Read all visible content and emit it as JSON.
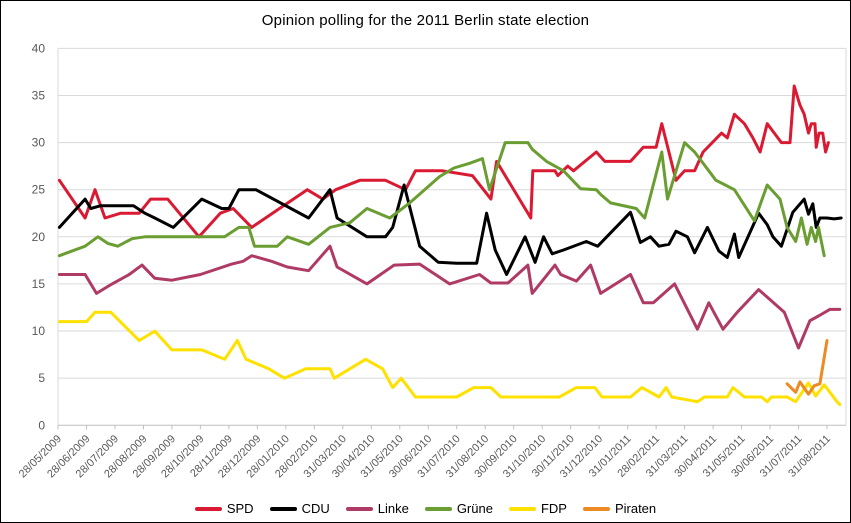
{
  "title": "Opinion polling for the 2011 Berlin state election",
  "chart_data": {
    "type": "line",
    "title": "Opinion polling for the 2011 Berlin state election",
    "xlabel": "",
    "ylabel": "",
    "ylim": [
      0,
      40
    ],
    "y_ticks": [
      0,
      5,
      10,
      15,
      20,
      25,
      30,
      35,
      40
    ],
    "grid": "horizontal",
    "legend_position": "bottom",
    "grid_color": "#dadada",
    "axis_color": "#bfbfbf",
    "tick_label_color": "#595959",
    "x_tick_labels": [
      "28/05/2009",
      "28/06/2009",
      "28/07/2009",
      "28/08/2009",
      "28/09/2009",
      "28/10/2009",
      "28/11/2009",
      "28/12/2009",
      "28/01/2010",
      "28/02/2010",
      "31/03/2010",
      "30/04/2010",
      "31/05/2010",
      "30/06/2010",
      "31/07/2010",
      "31/08/2010",
      "30/09/2010",
      "31/10/2010",
      "30/11/2010",
      "31/12/2010",
      "31/01/2011",
      "28/02/2011",
      "31/03/2011",
      "30/04/2011",
      "31/05/2011",
      "30/06/2011",
      "31/07/2011",
      "31/08/2011"
    ],
    "x_unit": "months since 28/05/2009 (tick index 0-27)",
    "series": [
      {
        "name": "SPD",
        "color": "#da1a32",
        "points": [
          [
            0.05,
            26
          ],
          [
            0.95,
            22
          ],
          [
            1.3,
            25
          ],
          [
            1.65,
            22
          ],
          [
            2.2,
            22.5
          ],
          [
            2.85,
            22.5
          ],
          [
            3.25,
            24
          ],
          [
            3.85,
            24
          ],
          [
            4.95,
            20
          ],
          [
            5.7,
            22.5
          ],
          [
            6.15,
            23
          ],
          [
            6.8,
            21
          ],
          [
            8.75,
            25
          ],
          [
            9.3,
            24
          ],
          [
            9.75,
            25
          ],
          [
            10.6,
            26
          ],
          [
            11.5,
            26
          ],
          [
            12.2,
            25
          ],
          [
            12.55,
            27
          ],
          [
            13.5,
            27
          ],
          [
            14.55,
            26.5
          ],
          [
            15.2,
            24
          ],
          [
            15.4,
            28
          ],
          [
            16.6,
            22
          ],
          [
            16.67,
            27
          ],
          [
            17.45,
            27
          ],
          [
            17.55,
            26.5
          ],
          [
            17.9,
            27.5
          ],
          [
            18.1,
            27
          ],
          [
            18.9,
            29
          ],
          [
            19.2,
            28
          ],
          [
            20.1,
            28
          ],
          [
            20.55,
            29.5
          ],
          [
            21.0,
            29.5
          ],
          [
            21.2,
            32
          ],
          [
            21.7,
            26
          ],
          [
            22.0,
            27
          ],
          [
            22.35,
            27
          ],
          [
            22.65,
            29
          ],
          [
            23.3,
            31
          ],
          [
            23.5,
            30.5
          ],
          [
            23.75,
            33
          ],
          [
            24.1,
            32
          ],
          [
            24.4,
            30.5
          ],
          [
            24.65,
            29
          ],
          [
            24.9,
            32
          ],
          [
            25.15,
            31
          ],
          [
            25.4,
            30
          ],
          [
            25.7,
            30
          ],
          [
            25.85,
            36
          ],
          [
            26.05,
            34
          ],
          [
            26.2,
            33
          ],
          [
            26.35,
            31
          ],
          [
            26.45,
            32
          ],
          [
            26.58,
            32
          ],
          [
            26.62,
            29.5
          ],
          [
            26.72,
            31
          ],
          [
            26.85,
            31
          ],
          [
            26.95,
            29
          ],
          [
            27.05,
            30
          ]
        ]
      },
      {
        "name": "CDU",
        "color": "#000000",
        "points": [
          [
            0.05,
            21
          ],
          [
            0.95,
            24
          ],
          [
            1.15,
            23
          ],
          [
            1.5,
            23.3
          ],
          [
            2.65,
            23.3
          ],
          [
            3.05,
            22.5
          ],
          [
            3.4,
            22
          ],
          [
            4.05,
            21
          ],
          [
            5.05,
            24
          ],
          [
            5.75,
            23
          ],
          [
            6.0,
            23
          ],
          [
            6.35,
            25
          ],
          [
            6.95,
            25
          ],
          [
            8.8,
            22
          ],
          [
            9.55,
            25
          ],
          [
            9.8,
            22
          ],
          [
            10.85,
            20
          ],
          [
            11.5,
            20
          ],
          [
            11.75,
            21
          ],
          [
            12.15,
            25.5
          ],
          [
            12.7,
            19
          ],
          [
            13.35,
            17.3
          ],
          [
            14.0,
            17.2
          ],
          [
            14.7,
            17.2
          ],
          [
            15.05,
            22.5
          ],
          [
            15.35,
            18.6
          ],
          [
            15.75,
            16
          ],
          [
            16.4,
            20
          ],
          [
            16.75,
            17.3
          ],
          [
            17.05,
            20
          ],
          [
            17.35,
            18.2
          ],
          [
            17.75,
            18.6
          ],
          [
            18.55,
            19.5
          ],
          [
            18.95,
            19
          ],
          [
            20.1,
            22.6
          ],
          [
            20.45,
            19.4
          ],
          [
            20.8,
            20
          ],
          [
            21.1,
            19
          ],
          [
            21.45,
            19.2
          ],
          [
            21.7,
            20.6
          ],
          [
            22.1,
            20
          ],
          [
            22.35,
            18.3
          ],
          [
            22.8,
            21
          ],
          [
            23.2,
            18.5
          ],
          [
            23.5,
            17.8
          ],
          [
            23.75,
            20.3
          ],
          [
            23.9,
            17.8
          ],
          [
            24.6,
            22.5
          ],
          [
            24.9,
            21.3
          ],
          [
            25.1,
            20
          ],
          [
            25.4,
            19
          ],
          [
            25.8,
            22.6
          ],
          [
            26.2,
            24
          ],
          [
            26.35,
            22.4
          ],
          [
            26.5,
            23.5
          ],
          [
            26.62,
            21
          ],
          [
            26.75,
            22
          ],
          [
            27.0,
            22
          ],
          [
            27.25,
            21.9
          ],
          [
            27.5,
            22
          ]
        ]
      },
      {
        "name": "Linke",
        "color": "#b03a66",
        "points": [
          [
            0.05,
            16
          ],
          [
            0.95,
            16
          ],
          [
            1.35,
            14
          ],
          [
            1.9,
            15
          ],
          [
            2.5,
            16
          ],
          [
            2.95,
            17
          ],
          [
            3.4,
            15.6
          ],
          [
            4.0,
            15.4
          ],
          [
            5.0,
            16
          ],
          [
            6.1,
            17.1
          ],
          [
            6.5,
            17.4
          ],
          [
            6.8,
            18
          ],
          [
            7.5,
            17.4
          ],
          [
            8.05,
            16.8
          ],
          [
            8.8,
            16.4
          ],
          [
            9.55,
            19
          ],
          [
            9.8,
            16.8
          ],
          [
            10.85,
            15
          ],
          [
            11.8,
            17
          ],
          [
            12.7,
            17.1
          ],
          [
            13.75,
            15
          ],
          [
            14.8,
            16
          ],
          [
            15.2,
            15.1
          ],
          [
            15.8,
            15.1
          ],
          [
            16.5,
            17
          ],
          [
            16.65,
            14
          ],
          [
            17.45,
            17
          ],
          [
            17.65,
            16
          ],
          [
            18.2,
            15.3
          ],
          [
            18.7,
            17
          ],
          [
            19.05,
            14
          ],
          [
            20.1,
            16
          ],
          [
            20.55,
            13
          ],
          [
            20.9,
            13
          ],
          [
            21.65,
            15
          ],
          [
            22.45,
            10.2
          ],
          [
            22.85,
            13
          ],
          [
            23.35,
            10.2
          ],
          [
            23.85,
            12
          ],
          [
            24.6,
            14.4
          ],
          [
            24.9,
            13.6
          ],
          [
            25.5,
            12
          ],
          [
            26.0,
            8.2
          ],
          [
            26.4,
            11.1
          ],
          [
            26.7,
            11.6
          ],
          [
            27.1,
            12.3
          ],
          [
            27.45,
            12.3
          ]
        ]
      },
      {
        "name": "Grüne",
        "color": "#6b9e32",
        "points": [
          [
            0.05,
            18
          ],
          [
            0.95,
            19
          ],
          [
            1.4,
            20
          ],
          [
            1.75,
            19.3
          ],
          [
            2.1,
            19
          ],
          [
            2.6,
            19.8
          ],
          [
            3.05,
            20
          ],
          [
            5.85,
            20
          ],
          [
            6.35,
            21
          ],
          [
            6.7,
            21
          ],
          [
            6.9,
            19
          ],
          [
            7.7,
            19
          ],
          [
            8.05,
            20
          ],
          [
            8.8,
            19.2
          ],
          [
            9.55,
            21
          ],
          [
            10.25,
            21.5
          ],
          [
            10.85,
            23
          ],
          [
            11.65,
            22
          ],
          [
            12.35,
            23.6
          ],
          [
            13.4,
            26.4
          ],
          [
            13.9,
            27.3
          ],
          [
            14.45,
            27.8
          ],
          [
            14.9,
            28.3
          ],
          [
            15.15,
            25
          ],
          [
            15.7,
            30
          ],
          [
            16.5,
            30
          ],
          [
            16.65,
            29.3
          ],
          [
            17.15,
            28
          ],
          [
            17.75,
            27
          ],
          [
            18.35,
            25.1
          ],
          [
            18.9,
            25
          ],
          [
            19.05,
            24.5
          ],
          [
            19.4,
            23.6
          ],
          [
            20.3,
            23
          ],
          [
            20.6,
            22
          ],
          [
            21.2,
            29
          ],
          [
            21.4,
            24
          ],
          [
            22.0,
            30
          ],
          [
            22.35,
            29
          ],
          [
            22.85,
            27
          ],
          [
            23.1,
            26
          ],
          [
            23.3,
            25.7
          ],
          [
            23.75,
            25
          ],
          [
            24.45,
            21.7
          ],
          [
            24.9,
            25.5
          ],
          [
            25.35,
            24
          ],
          [
            25.6,
            21
          ],
          [
            25.9,
            19.5
          ],
          [
            26.1,
            22
          ],
          [
            26.3,
            19.2
          ],
          [
            26.45,
            21
          ],
          [
            26.6,
            19.5
          ],
          [
            26.7,
            21
          ],
          [
            26.9,
            18
          ]
        ]
      },
      {
        "name": "FDP",
        "color": "#ffe100",
        "points": [
          [
            0.05,
            11
          ],
          [
            1.0,
            11
          ],
          [
            1.3,
            12
          ],
          [
            1.85,
            12
          ],
          [
            2.85,
            9
          ],
          [
            3.4,
            10
          ],
          [
            4.0,
            8
          ],
          [
            5.05,
            8
          ],
          [
            5.85,
            7
          ],
          [
            6.3,
            9
          ],
          [
            6.6,
            7
          ],
          [
            7.4,
            6
          ],
          [
            7.95,
            5
          ],
          [
            8.7,
            6
          ],
          [
            9.55,
            6
          ],
          [
            9.7,
            5
          ],
          [
            10.8,
            7
          ],
          [
            11.4,
            6
          ],
          [
            11.75,
            4
          ],
          [
            12.05,
            5
          ],
          [
            12.55,
            3
          ],
          [
            14.0,
            3
          ],
          [
            14.6,
            4
          ],
          [
            15.2,
            4
          ],
          [
            15.55,
            3
          ],
          [
            17.6,
            3
          ],
          [
            18.2,
            4
          ],
          [
            18.85,
            4
          ],
          [
            19.1,
            3
          ],
          [
            20.1,
            3
          ],
          [
            20.5,
            4
          ],
          [
            21.1,
            3
          ],
          [
            21.35,
            4
          ],
          [
            21.55,
            3
          ],
          [
            22.45,
            2.5
          ],
          [
            22.7,
            3
          ],
          [
            23.5,
            3
          ],
          [
            23.7,
            4
          ],
          [
            24.1,
            3
          ],
          [
            24.7,
            3
          ],
          [
            24.9,
            2.5
          ],
          [
            25.05,
            3
          ],
          [
            25.6,
            3
          ],
          [
            25.9,
            2.5
          ],
          [
            26.35,
            4.5
          ],
          [
            26.6,
            3.1
          ],
          [
            26.9,
            4.3
          ],
          [
            27.35,
            2.5
          ],
          [
            27.45,
            2.2
          ]
        ]
      },
      {
        "name": "Piraten",
        "color": "#ec8a24",
        "points": [
          [
            25.6,
            4.4
          ],
          [
            25.9,
            3.5
          ],
          [
            26.05,
            4.6
          ],
          [
            26.35,
            3.3
          ],
          [
            26.55,
            4.2
          ],
          [
            26.75,
            4.4
          ],
          [
            27.0,
            9
          ]
        ]
      }
    ]
  }
}
